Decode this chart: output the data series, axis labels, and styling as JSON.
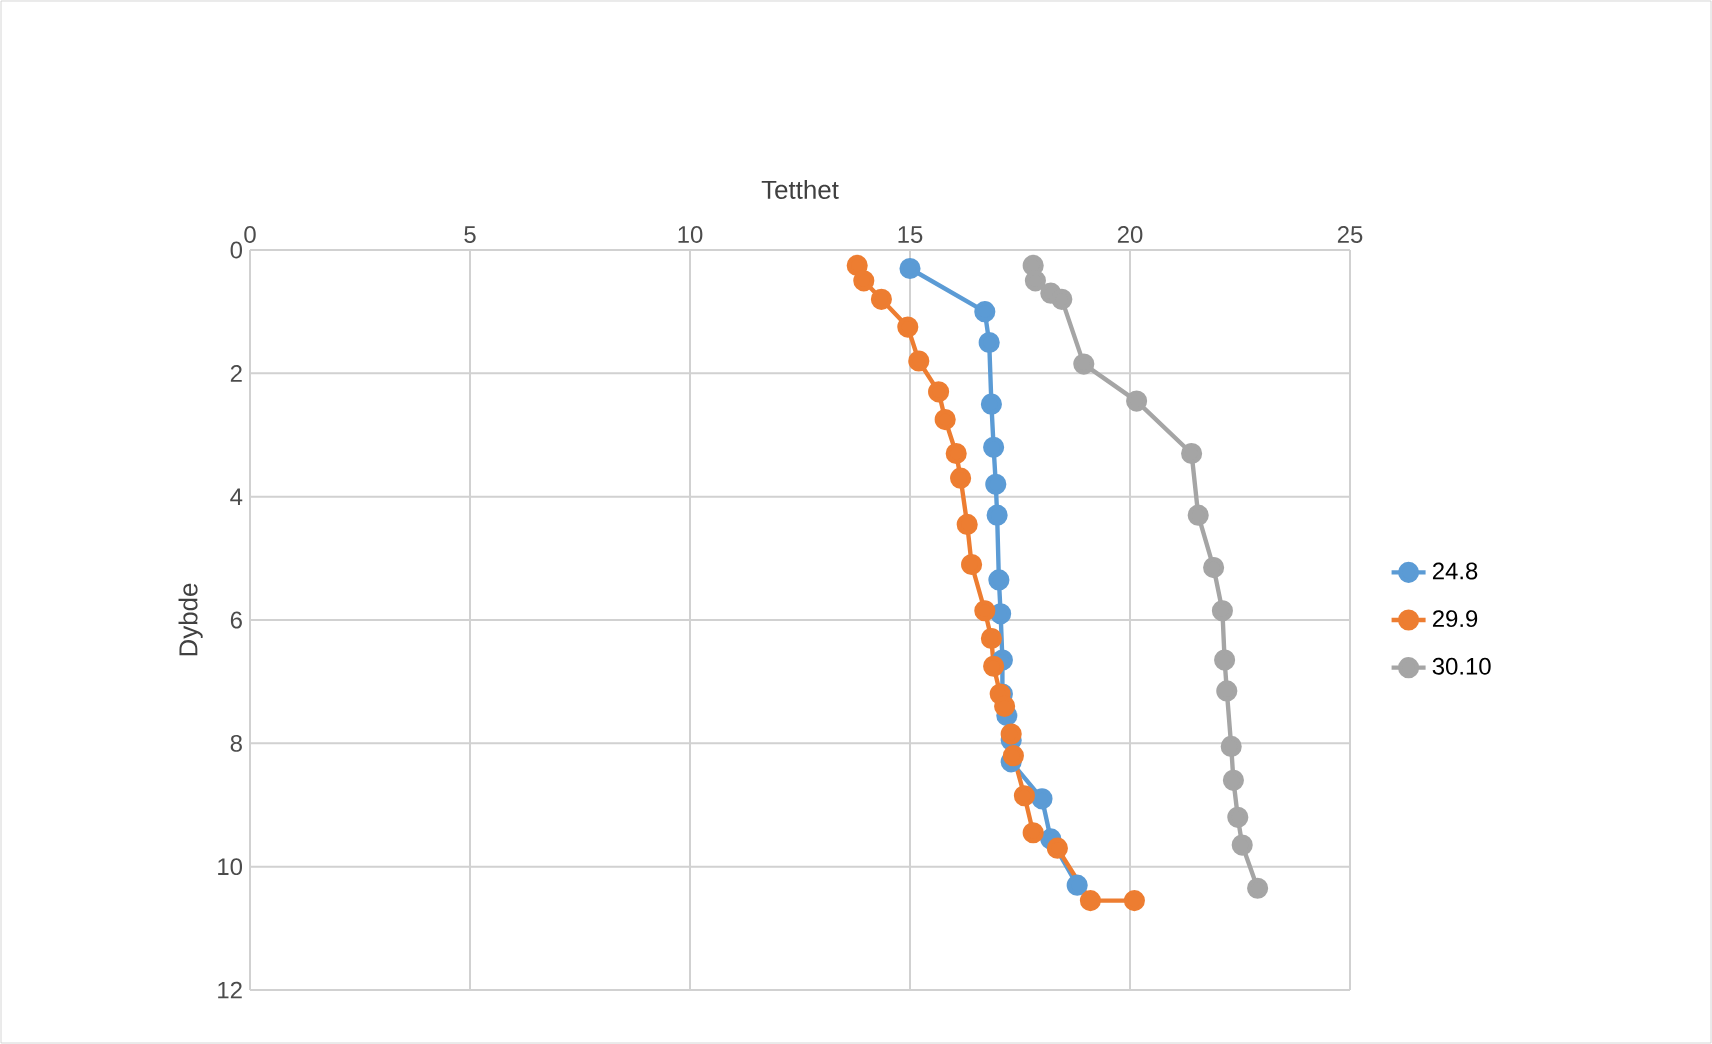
{
  "chart_data": {
    "type": "line",
    "xlabel": "Tetthet",
    "ylabel": "Dybde",
    "xlim": [
      0,
      25
    ],
    "xticks": [
      0,
      5,
      10,
      15,
      20,
      25
    ],
    "ylim": [
      12,
      0
    ],
    "yticks": [
      0,
      2,
      4,
      6,
      8,
      10,
      12
    ],
    "grid": true,
    "legend": "right",
    "marker": "circle",
    "line_style": "solid",
    "series": [
      {
        "name": "24.8",
        "color": "#5b9bd5",
        "x": [
          15.0,
          16.7,
          16.8,
          16.85,
          16.9,
          16.95,
          16.98,
          17.02,
          17.06,
          17.1,
          17.1,
          17.2,
          17.3,
          17.3,
          18.0,
          18.2,
          18.8
        ],
        "values": [
          0.3,
          1.0,
          1.5,
          2.5,
          3.2,
          3.8,
          4.3,
          5.35,
          5.9,
          6.65,
          7.2,
          7.55,
          7.95,
          8.3,
          8.9,
          9.55,
          10.3
        ]
      },
      {
        "name": "29.9",
        "color": "#ed7d31",
        "x": [
          13.8,
          13.95,
          14.35,
          14.95,
          15.2,
          15.65,
          15.8,
          16.05,
          16.15,
          16.3,
          16.4,
          16.7,
          16.85,
          16.9,
          17.05,
          17.15,
          17.3,
          17.35,
          17.6,
          17.8,
          18.35,
          19.1,
          20.1
        ],
        "values": [
          0.25,
          0.5,
          0.8,
          1.25,
          1.8,
          2.3,
          2.75,
          3.3,
          3.7,
          4.45,
          5.1,
          5.85,
          6.3,
          6.75,
          7.2,
          7.4,
          7.85,
          8.2,
          8.85,
          9.45,
          9.7,
          10.55,
          10.55
        ]
      },
      {
        "name": "30.10",
        "color": "#a5a5a5",
        "x": [
          17.8,
          17.85,
          18.2,
          18.45,
          18.95,
          20.15,
          21.4,
          21.55,
          21.9,
          22.1,
          22.15,
          22.2,
          22.3,
          22.35,
          22.45,
          22.55,
          22.9
        ],
        "values": [
          0.25,
          0.5,
          0.7,
          0.8,
          1.85,
          2.45,
          3.3,
          4.3,
          5.15,
          5.85,
          6.65,
          7.15,
          8.05,
          8.6,
          9.2,
          9.65,
          10.35
        ]
      }
    ]
  }
}
